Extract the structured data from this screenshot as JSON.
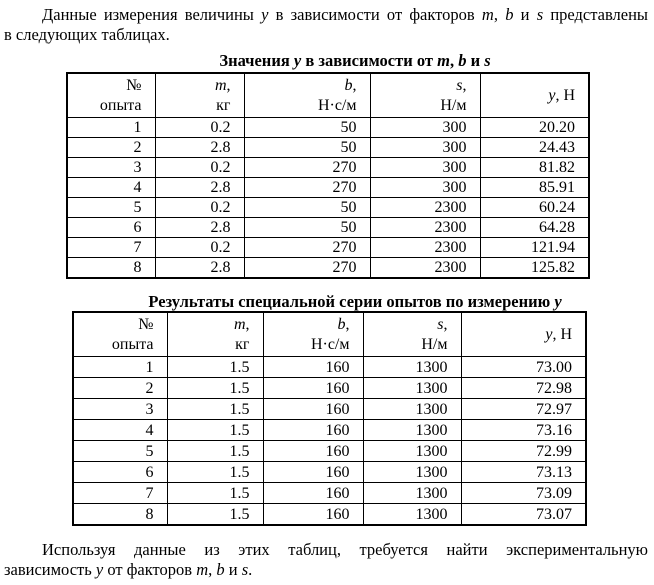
{
  "colors": {
    "page_background": "#ffffff",
    "text_color": "#000000",
    "table_border_color": "#000000"
  },
  "paragraphs": {
    "intro": {
      "lines": [
        {
          "justify_full": true,
          "indent": true,
          "segments": [
            {
              "t": "Данные измерения величины "
            },
            {
              "t": "y",
              "i": true
            },
            {
              "t": " в зависимости от факторов "
            },
            {
              "t": "m",
              "i": true
            },
            {
              "t": ", "
            },
            {
              "t": "b",
              "i": true
            },
            {
              "t": " и "
            },
            {
              "t": "s",
              "i": true
            },
            {
              "t": " представлены"
            }
          ]
        },
        {
          "segments": [
            {
              "t": "в следующих таблицах."
            }
          ]
        }
      ]
    },
    "outro": {
      "lines": [
        {
          "justify_full": true,
          "indent": true,
          "segments": [
            {
              "t": "Используя данные из этих таблиц, требуется найти экспериментальную"
            }
          ]
        },
        {
          "segments": [
            {
              "t": "зависимость "
            },
            {
              "t": "y",
              "i": true
            },
            {
              "t": " от факторов "
            },
            {
              "t": "m",
              "i": true
            },
            {
              "t": ", "
            },
            {
              "t": "b",
              "i": true
            },
            {
              "t": " и "
            },
            {
              "t": "s",
              "i": true
            },
            {
              "t": "."
            }
          ]
        }
      ]
    }
  },
  "tables": [
    {
      "title_segments": [
        {
          "t": "Значения "
        },
        {
          "t": "y",
          "i": true
        },
        {
          "t": " в зависимости от "
        },
        {
          "t": "m",
          "i": true
        },
        {
          "t": ", "
        },
        {
          "t": "b",
          "i": true
        },
        {
          "t": " и "
        },
        {
          "t": "s",
          "i": true
        }
      ],
      "columns": [
        {
          "header_lines": [
            [
              {
                "t": "№"
              }
            ],
            [
              {
                "t": "опыта"
              }
            ]
          ]
        },
        {
          "header_lines": [
            [
              {
                "t": "m",
                "i": true
              },
              {
                "t": ","
              }
            ],
            [
              {
                "t": "кг"
              }
            ]
          ]
        },
        {
          "header_lines": [
            [
              {
                "t": "b",
                "i": true
              },
              {
                "t": ","
              }
            ],
            [
              {
                "t": "Н·с/м"
              }
            ]
          ]
        },
        {
          "header_lines": [
            [
              {
                "t": "s",
                "i": true
              },
              {
                "t": ","
              }
            ],
            [
              {
                "t": "Н/м"
              }
            ]
          ]
        },
        {
          "header_lines": [
            [
              {
                "t": "y",
                "i": true
              },
              {
                "t": ", Н"
              }
            ]
          ]
        }
      ],
      "rows": [
        [
          "1",
          "0.2",
          "50",
          "300",
          "20.20"
        ],
        [
          "2",
          "2.8",
          "50",
          "300",
          "24.43"
        ],
        [
          "3",
          "0.2",
          "270",
          "300",
          "81.82"
        ],
        [
          "4",
          "2.8",
          "270",
          "300",
          "85.91"
        ],
        [
          "5",
          "0.2",
          "50",
          "2300",
          "60.24"
        ],
        [
          "6",
          "2.8",
          "50",
          "2300",
          "64.28"
        ],
        [
          "7",
          "0.2",
          "270",
          "2300",
          "121.94"
        ],
        [
          "8",
          "2.8",
          "270",
          "2300",
          "125.82"
        ]
      ]
    },
    {
      "title_segments": [
        {
          "t": "Результаты специальной серии опытов по измерению "
        },
        {
          "t": "y",
          "i": true
        }
      ],
      "columns": [
        {
          "header_lines": [
            [
              {
                "t": "№"
              }
            ],
            [
              {
                "t": "опыта"
              }
            ]
          ]
        },
        {
          "header_lines": [
            [
              {
                "t": "m",
                "i": true
              },
              {
                "t": ","
              }
            ],
            [
              {
                "t": "кг"
              }
            ]
          ]
        },
        {
          "header_lines": [
            [
              {
                "t": "b",
                "i": true
              },
              {
                "t": ","
              }
            ],
            [
              {
                "t": "Н·с/м"
              }
            ]
          ]
        },
        {
          "header_lines": [
            [
              {
                "t": "s",
                "i": true
              },
              {
                "t": ","
              }
            ],
            [
              {
                "t": "Н/м"
              }
            ]
          ]
        },
        {
          "header_lines": [
            [
              {
                "t": "y",
                "i": true
              },
              {
                "t": ", Н"
              }
            ]
          ]
        }
      ],
      "rows": [
        [
          "1",
          "1.5",
          "160",
          "1300",
          "73.00"
        ],
        [
          "2",
          "1.5",
          "160",
          "1300",
          "72.98"
        ],
        [
          "3",
          "1.5",
          "160",
          "1300",
          "72.97"
        ],
        [
          "4",
          "1.5",
          "160",
          "1300",
          "73.16"
        ],
        [
          "5",
          "1.5",
          "160",
          "1300",
          "72.99"
        ],
        [
          "6",
          "1.5",
          "160",
          "1300",
          "73.13"
        ],
        [
          "7",
          "1.5",
          "160",
          "1300",
          "73.09"
        ],
        [
          "8",
          "1.5",
          "160",
          "1300",
          "73.07"
        ]
      ]
    }
  ]
}
